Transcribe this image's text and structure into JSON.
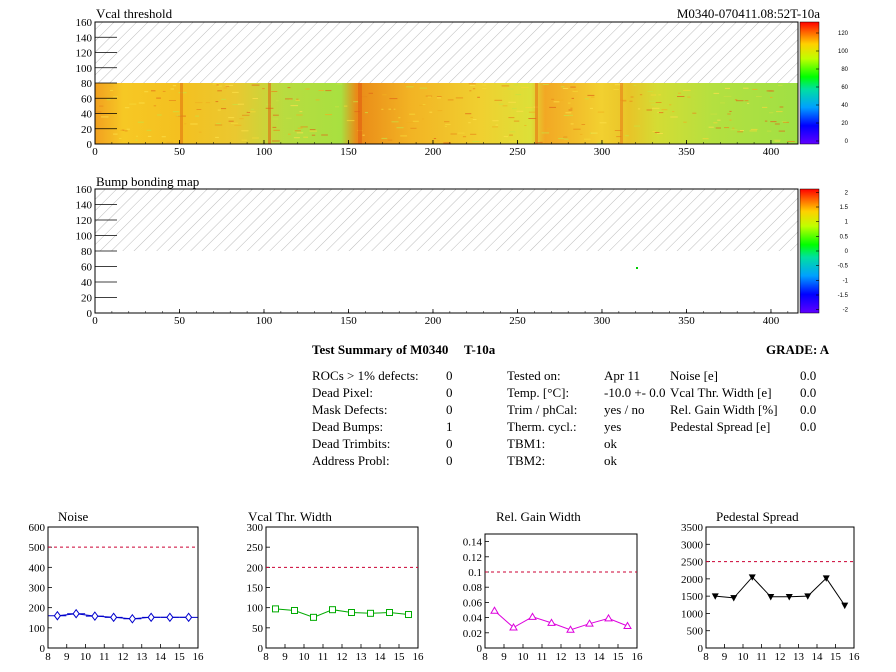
{
  "header": {
    "left_title": "Vcal threshold",
    "right_title": "M0340-070411.08:52T-10a"
  },
  "maps": [
    {
      "title": "Vcal threshold",
      "x_ticks": [
        0,
        50,
        100,
        150,
        200,
        250,
        300,
        350,
        400
      ],
      "y_ticks": [
        0,
        20,
        40,
        60,
        80,
        100,
        120,
        140,
        160
      ],
      "colorbar_ticks": [
        "120",
        "100",
        "80",
        "60",
        "40",
        "20",
        "0"
      ]
    },
    {
      "title": "Bump bonding map",
      "x_ticks": [
        0,
        50,
        100,
        150,
        200,
        250,
        300,
        350,
        400
      ],
      "y_ticks": [
        0,
        20,
        40,
        60,
        80,
        100,
        120,
        140,
        160
      ],
      "colorbar_ticks": [
        "2",
        "1.5",
        "1",
        "0.5",
        "0",
        "-0.5",
        "-1",
        "-1.5",
        "-2"
      ]
    }
  ],
  "summary": {
    "title": "Test Summary of M0340",
    "temp_tag": "T-10a",
    "grade": "GRADE:  A",
    "defects": [
      {
        "label": "ROCs > 1% defects:",
        "value": "0"
      },
      {
        "label": "Dead Pixel:",
        "value": "0"
      },
      {
        "label": "Mask Defects:",
        "value": "0"
      },
      {
        "label": "Dead Bumps:",
        "value": "1"
      },
      {
        "label": "Dead Trimbits:",
        "value": "0"
      },
      {
        "label": "Address Probl:",
        "value": "0"
      }
    ],
    "conditions": [
      {
        "label": "Tested on:",
        "value": "Apr 11"
      },
      {
        "label": "Temp. [°C]:",
        "value": "-10.0 +- 0.0"
      },
      {
        "label": "Trim / phCal:",
        "value": "yes / no"
      },
      {
        "label": "Therm. cycl.:",
        "value": "yes"
      },
      {
        "label": "TBM1:",
        "value": "ok"
      },
      {
        "label": "TBM2:",
        "value": "ok"
      }
    ],
    "widths": [
      {
        "label": "Noise [e]",
        "value": "0.0"
      },
      {
        "label": "Vcal Thr. Width [e]",
        "value": "0.0"
      },
      {
        "label": "Rel. Gain Width [%]",
        "value": "0.0"
      },
      {
        "label": "Pedestal Spread [e]",
        "value": "0.0"
      }
    ]
  },
  "chart_data": [
    {
      "type": "line",
      "title": "Noise",
      "x": [
        8.5,
        9.5,
        10.5,
        11.5,
        12.5,
        13.5,
        14.5,
        15.5
      ],
      "values": [
        160,
        170,
        158,
        152,
        145,
        152,
        152,
        152
      ],
      "xlim": [
        8,
        16
      ],
      "ylim": [
        0,
        600
      ],
      "x_ticks": [
        8,
        9,
        10,
        11,
        12,
        13,
        14,
        15,
        16
      ],
      "y_ticks": [
        "0",
        "100",
        "200",
        "300",
        "400",
        "500",
        "600"
      ],
      "threshold": 500,
      "color": "#0000cc",
      "marker": "diamond"
    },
    {
      "type": "line",
      "title": "Vcal Thr. Width",
      "x": [
        8.5,
        9.5,
        10.5,
        11.5,
        12.5,
        13.5,
        14.5,
        15.5
      ],
      "values": [
        97,
        93,
        76,
        95,
        88,
        86,
        88,
        83
      ],
      "xlim": [
        8,
        16
      ],
      "ylim": [
        0,
        300
      ],
      "x_ticks": [
        8,
        9,
        10,
        11,
        12,
        13,
        14,
        15,
        16
      ],
      "y_ticks": [
        "0",
        "50",
        "100",
        "150",
        "200",
        "250",
        "300"
      ],
      "threshold": 200,
      "color": "#00aa00",
      "marker": "square"
    },
    {
      "type": "line",
      "title": "Rel. Gain Width",
      "x": [
        8.5,
        9.5,
        10.5,
        11.5,
        12.5,
        13.5,
        14.5,
        15.5
      ],
      "values": [
        0.049,
        0.027,
        0.041,
        0.033,
        0.024,
        0.032,
        0.039,
        0.029
      ],
      "xlim": [
        8,
        16
      ],
      "ylim": [
        0,
        0.15
      ],
      "x_ticks": [
        8,
        9,
        10,
        11,
        12,
        13,
        14,
        15,
        16
      ],
      "y_ticks": [
        "0",
        "0.02",
        "0.04",
        "0.06",
        "0.08",
        "0.1",
        "0.12",
        "0.14"
      ],
      "threshold": 0.1,
      "color": "#dd00dd",
      "marker": "triangle"
    },
    {
      "type": "line",
      "title": "Pedestal Spread",
      "x": [
        8.5,
        9.5,
        10.5,
        11.5,
        12.5,
        13.5,
        14.5,
        15.5
      ],
      "values": [
        1500,
        1450,
        2050,
        1480,
        1480,
        1500,
        2020,
        1230
      ],
      "xlim": [
        8,
        16
      ],
      "ylim": [
        0,
        3500
      ],
      "x_ticks": [
        8,
        9,
        10,
        11,
        12,
        13,
        14,
        15,
        16
      ],
      "y_ticks": [
        "0",
        "500",
        "1000",
        "1500",
        "2000",
        "2500",
        "3000",
        "3500"
      ],
      "threshold": 2500,
      "color": "#000000",
      "marker": "triangle-down"
    }
  ]
}
